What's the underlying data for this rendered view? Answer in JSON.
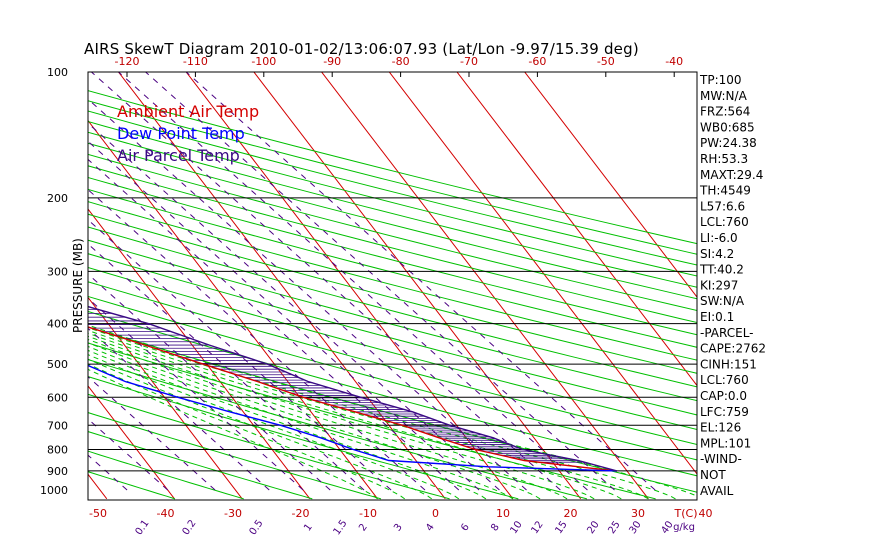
{
  "chart_data": {
    "type": "line",
    "title": "AIRS SkewT Diagram 2010-01-02/13:06:07.93 (Lat/Lon -9.97/15.39 deg)",
    "ylabel": "PRESSURE (MB)",
    "x_unit_label": "T(C)",
    "mixing_ratio_unit_label": "g/kg",
    "ylim": [
      1000,
      100
    ],
    "xlim_bottom": [
      -50,
      40
    ],
    "y_ticks": [
      100,
      200,
      300,
      400,
      500,
      600,
      700,
      800,
      900,
      1000
    ],
    "x_ticks_top": [
      -120,
      -110,
      -100,
      -90,
      -80,
      -70,
      -60,
      -50,
      -40
    ],
    "x_ticks_bottom": [
      -50,
      -40,
      -30,
      -20,
      -10,
      0,
      10,
      20,
      30,
      40
    ],
    "mixing_ratio_labels": [
      "0.1",
      "0.2",
      "0.5",
      "1",
      "1.5",
      "2",
      "3",
      "4",
      "6",
      "8",
      "10",
      "12",
      "15",
      "20",
      "25",
      "30",
      "40"
    ],
    "series": [
      {
        "name": "Ambient Air Temp",
        "color": "#d40000",
        "points": [
          [
            -82.0,
            100
          ],
          [
            -82.0,
            130
          ],
          [
            -81.0,
            160
          ],
          [
            -74.0,
            200
          ],
          [
            -63.0,
            250
          ],
          [
            -53.0,
            300
          ],
          [
            -42.0,
            350
          ],
          [
            -34.5,
            400
          ],
          [
            -27.0,
            450
          ],
          [
            -20.5,
            500
          ],
          [
            -14.5,
            550
          ],
          [
            -9.5,
            600
          ],
          [
            -3.5,
            650
          ],
          [
            2.0,
            700
          ],
          [
            6.0,
            750
          ],
          [
            10.0,
            800
          ],
          [
            16.0,
            850
          ],
          [
            24.5,
            885
          ],
          [
            28.5,
            900
          ]
        ]
      },
      {
        "name": "Dew Point Temp",
        "color": "#0000ff",
        "points": [
          [
            -94.0,
            100
          ],
          [
            -96.5,
            140
          ],
          [
            -91.0,
            170
          ],
          [
            -87.0,
            200
          ],
          [
            -80.0,
            250
          ],
          [
            -69.0,
            300
          ],
          [
            -56.0,
            350
          ],
          [
            -48.0,
            400
          ],
          [
            -43.5,
            450
          ],
          [
            -38.0,
            500
          ],
          [
            -34.0,
            550
          ],
          [
            -28.0,
            600
          ],
          [
            -22.0,
            650
          ],
          [
            -16.0,
            700
          ],
          [
            -11.5,
            750
          ],
          [
            -8.0,
            800
          ],
          [
            -4.0,
            850
          ],
          [
            10.0,
            880
          ],
          [
            28.5,
            900
          ]
        ]
      },
      {
        "name": "Air Parcel Temp",
        "color": "#3a0a85",
        "points": [
          [
            -88.0,
            100
          ],
          [
            -85.0,
            120
          ],
          [
            -79.0,
            150
          ],
          [
            -66.0,
            200
          ],
          [
            -56.0,
            250
          ],
          [
            -43.0,
            300
          ],
          [
            -34.0,
            350
          ],
          [
            -24.0,
            400
          ],
          [
            -17.5,
            450
          ],
          [
            -11.0,
            500
          ],
          [
            -7.0,
            550
          ],
          [
            -1.0,
            600
          ],
          [
            5.0,
            650
          ],
          [
            9.0,
            700
          ],
          [
            14.0,
            750
          ],
          [
            17.0,
            800
          ],
          [
            24.0,
            850
          ],
          [
            28.5,
            900
          ]
        ]
      }
    ],
    "shaded_region": {
      "between": [
        "Ambient Air Temp",
        "Air Parcel Temp"
      ],
      "style": "horizontal hatch",
      "color": "#3a0a85"
    },
    "stats": [
      "TP:100",
      "MW:N/A",
      "FRZ:564",
      "WB0:685",
      "PW:24.38",
      "RH:53.3",
      "MAXT:29.4",
      "TH:4549",
      "L57:6.6",
      "LCL:760",
      "LI:-6.0",
      "SI:4.2",
      "TT:40.2",
      "KI:297",
      "SW:N/A",
      "EI:0.1",
      "-PARCEL-",
      "CAPE:2762",
      "CINH:151",
      "LCL:760",
      "CAP:0.0",
      "LFC:759",
      "EL:126",
      "MPL:101",
      "-WIND-",
      "NOT",
      "AVAIL"
    ],
    "grid": true,
    "legend_placement": "top-left",
    "colors": {
      "isotherm": "#d40000",
      "dry_adiabat": "#00c000",
      "moist_adiabat": "#00c000",
      "mixing_ratio": "#4b0082",
      "isobar": "#000000"
    }
  }
}
